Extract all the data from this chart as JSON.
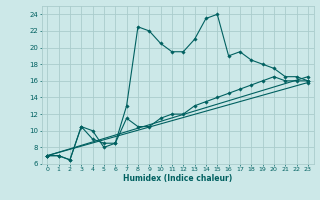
{
  "title": "",
  "xlabel": "Humidex (Indice chaleur)",
  "background_color": "#cce8e8",
  "grid_color": "#aacccc",
  "line_color": "#006060",
  "xlim": [
    -0.5,
    23.5
  ],
  "ylim": [
    6,
    25
  ],
  "yticks": [
    6,
    8,
    10,
    12,
    14,
    16,
    18,
    20,
    22,
    24
  ],
  "xticks": [
    0,
    1,
    2,
    3,
    4,
    5,
    6,
    7,
    8,
    9,
    10,
    11,
    12,
    13,
    14,
    15,
    16,
    17,
    18,
    19,
    20,
    21,
    22,
    23
  ],
  "xtick_labels": [
    "0",
    "1",
    "2",
    "3",
    "4",
    "5",
    "6",
    "7",
    "8",
    "9",
    "10",
    "11",
    "12",
    "13",
    "14",
    "15",
    "16",
    "17",
    "18",
    "19",
    "20",
    "21",
    "22",
    "23"
  ],
  "line1_x": [
    0,
    1,
    2,
    3,
    4,
    5,
    6,
    7,
    8,
    9,
    10,
    11,
    12,
    13,
    14,
    15,
    16,
    17,
    18,
    19,
    20,
    21,
    22,
    23
  ],
  "line1_y": [
    7,
    7,
    6.5,
    10.5,
    9,
    8.5,
    8.5,
    13,
    22.5,
    22,
    20.5,
    19.5,
    19.5,
    21,
    23.5,
    24,
    19,
    19.5,
    18.5,
    18,
    17.5,
    16.5,
    16.5,
    16
  ],
  "line2_x": [
    0,
    1,
    2,
    3,
    4,
    5,
    6,
    7,
    8,
    9,
    10,
    11,
    12,
    13,
    14,
    15,
    16,
    17,
    18,
    19,
    20,
    21,
    22,
    23
  ],
  "line2_y": [
    7,
    7,
    6.5,
    10.5,
    10,
    8,
    8.5,
    11.5,
    10.5,
    10.5,
    11.5,
    12,
    12,
    13,
    13.5,
    14,
    14.5,
    15,
    15.5,
    16,
    16.5,
    16,
    16,
    16
  ],
  "line3_x": [
    0,
    23
  ],
  "line3_y": [
    7,
    16.5
  ],
  "line4_x": [
    0,
    23
  ],
  "line4_y": [
    7,
    15.8
  ]
}
